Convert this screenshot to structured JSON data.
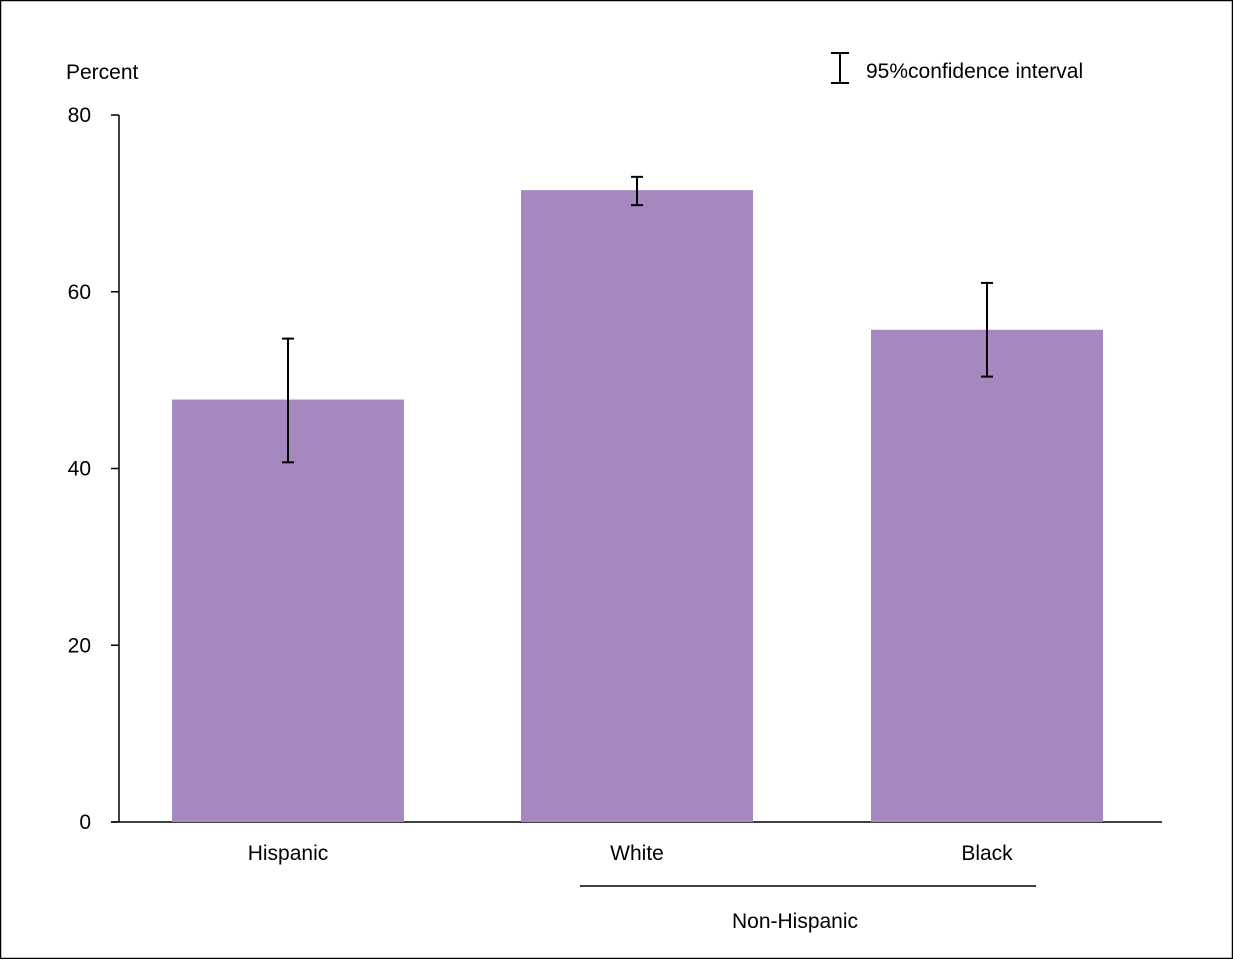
{
  "chart_data": {
    "type": "bar",
    "title": "",
    "xlabel": "",
    "ylabel": "Percent",
    "ylim": [
      0,
      80
    ],
    "yticks": [
      0,
      20,
      40,
      60,
      80
    ],
    "categories": [
      "Hispanic",
      "White",
      "Black"
    ],
    "group_label": "Non-Hispanic",
    "grouped_categories": [
      "White",
      "Black"
    ],
    "values": [
      47.8,
      71.5,
      55.7
    ],
    "ci_lower": [
      40.7,
      69.8,
      50.4
    ],
    "ci_upper": [
      54.7,
      73.0,
      61.0
    ],
    "legend": {
      "label": "95%confidence interval",
      "position": "top-right"
    },
    "bar_color": "#a488bf",
    "grid": false
  }
}
